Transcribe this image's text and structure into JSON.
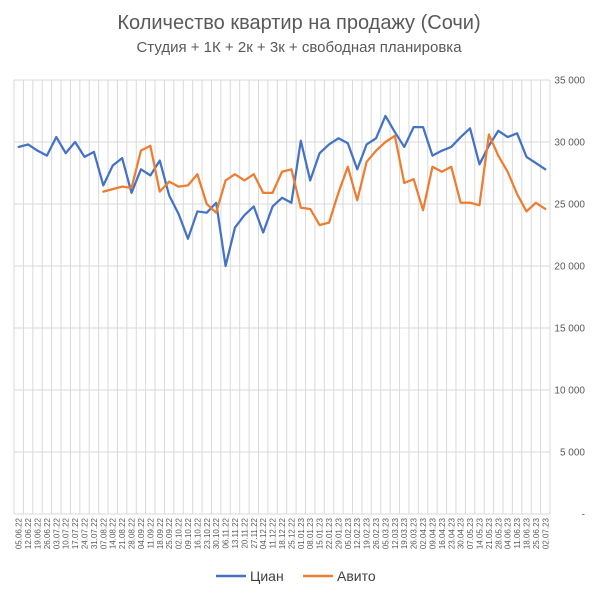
{
  "chart_data": {
    "type": "line",
    "title": "Количество квартир на продажу (Сочи)",
    "subtitle": "Студия + 1К + 2к + 3к + свободная планировка",
    "ylim": [
      0,
      35000
    ],
    "yticks": [
      "-",
      "5 000",
      "10 000",
      "15 000",
      "20 000",
      "25 000",
      "30 000",
      "35 000"
    ],
    "grid": true,
    "legend_position": "bottom",
    "x": [
      "05.06.22",
      "12.06.22",
      "19.06.22",
      "26.06.22",
      "03.07.22",
      "10.07.22",
      "17.07.22",
      "24.07.22",
      "31.07.22",
      "07.08.22",
      "14.08.22",
      "21.08.22",
      "28.08.22",
      "04.09.22",
      "11.09.22",
      "18.09.22",
      "25.09.22",
      "02.10.22",
      "09.10.22",
      "16.10.22",
      "23.10.22",
      "30.10.22",
      "06.11.22",
      "13.11.22",
      "20.11.22",
      "27.11.22",
      "04.12.22",
      "11.12.22",
      "18.12.22",
      "25.12.22",
      "01.01.23",
      "08.01.23",
      "15.01.23",
      "22.01.23",
      "29.01.23",
      "05.02.23",
      "12.02.23",
      "19.02.23",
      "26.02.23",
      "05.03.23",
      "12.03.23",
      "19.03.23",
      "26.03.23",
      "02.04.23",
      "09.04.23",
      "16.04.23",
      "23.04.23",
      "30.04.23",
      "07.05.23",
      "14.05.23",
      "21.05.23",
      "28.05.23",
      "04.06.23",
      "11.06.23",
      "18.06.23",
      "25.06.23",
      "02.07.23"
    ],
    "series": [
      {
        "name": "Циан",
        "color": "#4472C4",
        "values": [
          29600,
          29800,
          29300,
          28900,
          30400,
          29100,
          30000,
          28800,
          29200,
          26500,
          28100,
          28700,
          25900,
          27800,
          27300,
          28500,
          25700,
          24200,
          22200,
          24400,
          24300,
          25100,
          20000,
          23100,
          24100,
          24800,
          22700,
          24800,
          25500,
          25100,
          30100,
          26900,
          29100,
          29800,
          30300,
          29900,
          27800,
          29800,
          30300,
          32100,
          30800,
          29600,
          31200,
          31200,
          28900,
          29300,
          29600,
          30400,
          31100,
          28200,
          29700,
          30900,
          30400,
          30700,
          28800,
          28300,
          27800
        ]
      },
      {
        "name": "Авито",
        "color": "#ED7D31",
        "values": [
          null,
          null,
          null,
          null,
          null,
          null,
          null,
          null,
          null,
          26000,
          26200,
          26400,
          26300,
          29300,
          29700,
          26000,
          26800,
          26400,
          26500,
          27400,
          25000,
          24300,
          26900,
          27400,
          26900,
          27400,
          25900,
          25900,
          27600,
          27800,
          24700,
          24600,
          23300,
          23500,
          25900,
          28000,
          25300,
          28400,
          29300,
          30000,
          30500,
          26700,
          27000,
          24500,
          28000,
          27600,
          28000,
          25100,
          25100,
          24900,
          30600,
          28900,
          27600,
          25800,
          24400,
          25100,
          24600
        ]
      }
    ]
  }
}
